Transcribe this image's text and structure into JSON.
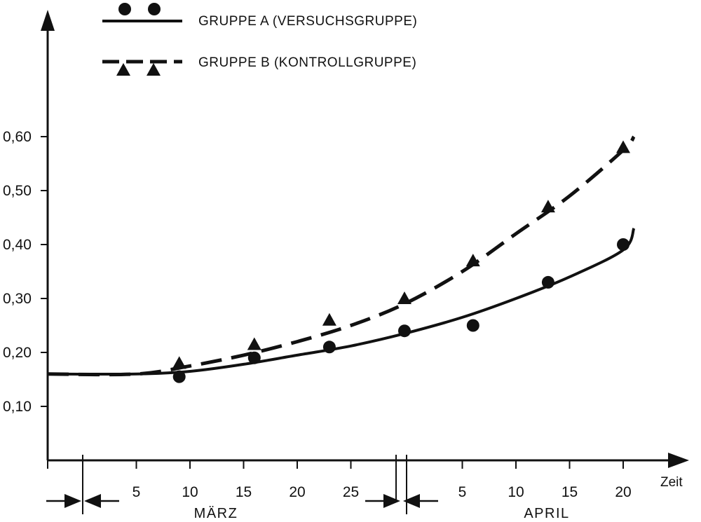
{
  "chart_data": {
    "type": "line",
    "title": "",
    "xlabel": "Zeit",
    "ylabel": "",
    "y_tick_labels": [
      "0,10",
      "0,20",
      "0,30",
      "0,40",
      "0,50",
      "0,60"
    ],
    "y_tick_values": [
      0.1,
      0.2,
      0.3,
      0.4,
      0.5,
      0.6
    ],
    "ylim": [
      0.0,
      0.82
    ],
    "x_axis_months": [
      {
        "label": "MÄRZ",
        "ticks": [
          "5",
          "10",
          "15",
          "20",
          "25"
        ]
      },
      {
        "label": "APRIL",
        "ticks": [
          "5",
          "10",
          "15",
          "20"
        ]
      }
    ],
    "grid": false,
    "legend_position": "top-center",
    "series": [
      {
        "name": "GRUPPE A (VERSUCHSGRUPPE)",
        "marker": "circle",
        "line_style": "solid",
        "color": "#111111",
        "points": [
          {
            "x": "09.03",
            "y": 0.155
          },
          {
            "x": "16.03",
            "y": 0.19
          },
          {
            "x": "23.03",
            "y": 0.21
          },
          {
            "x": "30.03",
            "y": 0.24
          },
          {
            "x": "06.04",
            "y": 0.25
          },
          {
            "x": "13.04",
            "y": 0.33
          },
          {
            "x": "20.04",
            "y": 0.4
          }
        ],
        "trend": [
          {
            "x": "01.03",
            "y": 0.16
          },
          {
            "x": "05.03",
            "y": 0.16
          },
          {
            "x": "10.03",
            "y": 0.165
          },
          {
            "x": "15.03",
            "y": 0.178
          },
          {
            "x": "20.03",
            "y": 0.195
          },
          {
            "x": "25.03",
            "y": 0.212
          },
          {
            "x": "30.03",
            "y": 0.235
          },
          {
            "x": "05.04",
            "y": 0.265
          },
          {
            "x": "10.04",
            "y": 0.3
          },
          {
            "x": "15.04",
            "y": 0.34
          },
          {
            "x": "20.04",
            "y": 0.39
          },
          {
            "x": "21.04",
            "y": 0.43
          }
        ]
      },
      {
        "name": "GRUPPE B (KONTROLLGRUPPE)",
        "marker": "triangle",
        "line_style": "dashed",
        "color": "#111111",
        "points": [
          {
            "x": "09.03",
            "y": 0.18
          },
          {
            "x": "16.03",
            "y": 0.215
          },
          {
            "x": "23.03",
            "y": 0.26
          },
          {
            "x": "30.03",
            "y": 0.3
          },
          {
            "x": "06.04",
            "y": 0.37
          },
          {
            "x": "13.04",
            "y": 0.47
          },
          {
            "x": "20.04",
            "y": 0.58
          }
        ],
        "trend": [
          {
            "x": "01.03",
            "y": 0.16
          },
          {
            "x": "05.03",
            "y": 0.16
          },
          {
            "x": "10.03",
            "y": 0.175
          },
          {
            "x": "15.03",
            "y": 0.195
          },
          {
            "x": "20.03",
            "y": 0.22
          },
          {
            "x": "25.03",
            "y": 0.25
          },
          {
            "x": "30.03",
            "y": 0.29
          },
          {
            "x": "05.04",
            "y": 0.35
          },
          {
            "x": "10.04",
            "y": 0.42
          },
          {
            "x": "15.04",
            "y": 0.49
          },
          {
            "x": "20.04",
            "y": 0.575
          },
          {
            "x": "21.04",
            "y": 0.6
          }
        ]
      }
    ]
  }
}
